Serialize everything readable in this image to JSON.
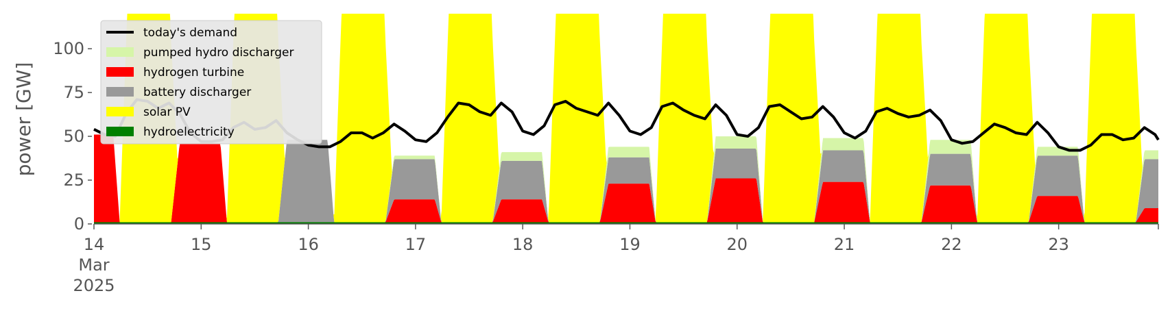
{
  "chart_data": {
    "type": "area",
    "title": "",
    "xlabel": "",
    "ylabel": "power [GW]",
    "ylim": [
      0,
      120
    ],
    "yticks": [
      0,
      25,
      50,
      75,
      100
    ],
    "xlim": [
      0,
      9.93
    ],
    "x_unit": "days since 14 Mar 2025 00:00",
    "xticks": [
      {
        "pos": 0,
        "lines": [
          "14",
          "Mar",
          "2025"
        ]
      },
      {
        "pos": 1,
        "lines": [
          "15"
        ]
      },
      {
        "pos": 2,
        "lines": [
          "16"
        ]
      },
      {
        "pos": 3,
        "lines": [
          "17"
        ]
      },
      {
        "pos": 4,
        "lines": [
          "18"
        ]
      },
      {
        "pos": 5,
        "lines": [
          "19"
        ]
      },
      {
        "pos": 6,
        "lines": [
          "20"
        ]
      },
      {
        "pos": 7,
        "lines": [
          "21"
        ]
      },
      {
        "pos": 8,
        "lines": [
          "22"
        ]
      },
      {
        "pos": 9,
        "lines": [
          "23"
        ]
      }
    ],
    "legend_position": "top-left",
    "stack_order_bottom_to_top": [
      "hydroelectricity",
      "hydrogen turbine",
      "battery discharger",
      "pumped hydro discharger",
      "solar PV"
    ],
    "series": [
      {
        "name": "today's demand",
        "kind": "line",
        "color": "#000000"
      },
      {
        "name": "pumped hydro discharger",
        "kind": "area",
        "color": "#d6f5a8"
      },
      {
        "name": "hydrogen turbine",
        "kind": "area",
        "color": "#ff0000"
      },
      {
        "name": "battery discharger",
        "kind": "area",
        "color": "#999999"
      },
      {
        "name": "solar PV",
        "kind": "area",
        "color": "#ffff00"
      },
      {
        "name": "hydroelectricity",
        "kind": "area",
        "color": "#008000"
      }
    ],
    "hydroelectricity_level": 1,
    "days": [
      {
        "h2": 50,
        "bat": 0,
        "ph": 0
      },
      {
        "h2": 45,
        "bat": 0,
        "ph": 0
      },
      {
        "h2": 0,
        "bat": 47,
        "ph": 0
      },
      {
        "h2": 13,
        "bat": 23,
        "ph": 2
      },
      {
        "h2": 13,
        "bat": 22,
        "ph": 5
      },
      {
        "h2": 22,
        "bat": 15,
        "ph": 6
      },
      {
        "h2": 25,
        "bat": 17,
        "ph": 7
      },
      {
        "h2": 23,
        "bat": 18,
        "ph": 7
      },
      {
        "h2": 21,
        "bat": 18,
        "ph": 8
      },
      {
        "h2": 15,
        "bat": 23,
        "ph": 5
      },
      {
        "h2": 8,
        "bat": 28,
        "ph": 5
      }
    ],
    "solar_peak_visible": "above 120",
    "demand": {
      "x": [
        0,
        0.1,
        0.2,
        0.3,
        0.4,
        0.5,
        0.6,
        0.7,
        0.8,
        0.9,
        1.0,
        1.1,
        1.2,
        1.3,
        1.4,
        1.5,
        1.6,
        1.7,
        1.8,
        1.9,
        2.0,
        2.1,
        2.2,
        2.3,
        2.4,
        2.5,
        2.6,
        2.7,
        2.8,
        2.9,
        3.0,
        3.1,
        3.2,
        3.3,
        3.4,
        3.5,
        3.6,
        3.7,
        3.8,
        3.9,
        4.0,
        4.1,
        4.2,
        4.3,
        4.4,
        4.5,
        4.6,
        4.7,
        4.8,
        4.9,
        5.0,
        5.1,
        5.2,
        5.3,
        5.4,
        5.5,
        5.6,
        5.7,
        5.8,
        5.9,
        6.0,
        6.1,
        6.2,
        6.3,
        6.4,
        6.5,
        6.6,
        6.7,
        6.8,
        6.9,
        7.0,
        7.1,
        7.2,
        7.3,
        7.4,
        7.5,
        7.6,
        7.7,
        7.8,
        7.9,
        8.0,
        8.1,
        8.2,
        8.3,
        8.4,
        8.5,
        8.6,
        8.7,
        8.8,
        8.9,
        9.0,
        9.1,
        9.2,
        9.3,
        9.4,
        9.5,
        9.6,
        9.7,
        9.8,
        9.9,
        9.93
      ],
      "y": [
        54,
        51,
        50,
        63,
        71,
        70,
        66,
        69,
        63,
        52,
        47,
        47,
        48,
        55,
        58,
        54,
        55,
        59,
        52,
        48,
        45,
        44,
        44,
        47,
        52,
        52,
        49,
        52,
        57,
        53,
        48,
        47,
        52,
        61,
        69,
        68,
        64,
        62,
        69,
        64,
        53,
        51,
        56,
        68,
        70,
        66,
        64,
        62,
        69,
        62,
        53,
        51,
        55,
        67,
        69,
        65,
        62,
        60,
        68,
        62,
        51,
        50,
        55,
        67,
        68,
        64,
        60,
        61,
        67,
        61,
        52,
        49,
        53,
        64,
        66,
        63,
        61,
        62,
        65,
        59,
        48,
        46,
        47,
        52,
        57,
        55,
        52,
        51,
        58,
        52,
        44,
        42,
        42,
        45,
        51,
        51,
        48,
        49,
        55,
        51,
        48
      ]
    }
  }
}
